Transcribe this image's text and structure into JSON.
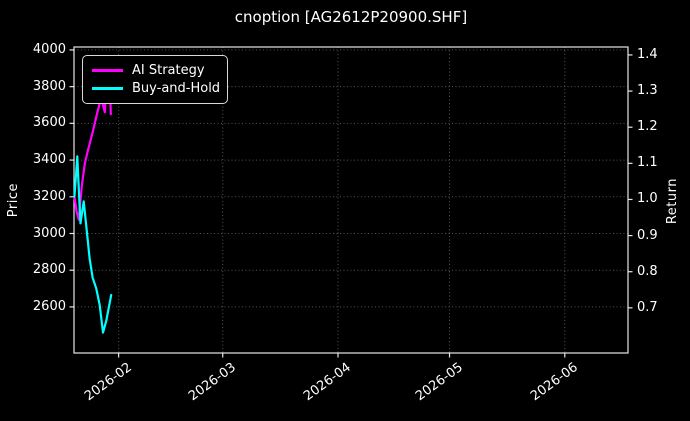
{
  "chart_data": {
    "type": "line",
    "title": "cnoption [AG2612P20900.SHF]",
    "grid": true,
    "legend_position": "upper left",
    "background": "#000000",
    "text_color": "#ffffff",
    "grid_color": "#545454",
    "spine_color": "#e6e6e6",
    "x_axis": {
      "epoch": "2026-01-20",
      "range_days": [
        0,
        149
      ],
      "tick_days": [
        12,
        40,
        71,
        101,
        132
      ],
      "tick_labels": [
        "2026-02",
        "2026-03",
        "2026-04",
        "2026-05",
        "2026-06"
      ]
    },
    "y_axis_left": {
      "label": "Price",
      "range": [
        2349,
        4016
      ],
      "tick_labels": [
        "4000",
        "3800",
        "3600",
        "3400",
        "3200",
        "3000",
        "2800",
        "2600"
      ]
    },
    "y_axis_right": {
      "label": "Return",
      "range": [
        0.575,
        1.422
      ],
      "tick_labels": [
        "1.4",
        "1.3",
        "1.2",
        "1.1",
        "1.0",
        "0.9",
        "0.8",
        "0.7"
      ]
    },
    "series": [
      {
        "name": "AI Strategy",
        "color": "#ff00ff",
        "axis": "left",
        "x_days": [
          0.1,
          0.7,
          1.3,
          2.1,
          2.9,
          3.7,
          4.5,
          5.3,
          6.1,
          6.9,
          7.4,
          8.3,
          8.9,
          9.2,
          9.5,
          9.9
        ],
        "price": [
          3200,
          3120,
          3075,
          3260,
          3380,
          3450,
          3510,
          3575,
          3645,
          3710,
          3730,
          3660,
          3935,
          3895,
          3925,
          3650
        ]
      },
      {
        "name": "Buy-and-Hold",
        "color": "#00ffff",
        "axis": "left",
        "x_days": [
          0.1,
          0.5,
          0.9,
          1.3,
          1.75,
          2.2,
          2.6,
          3.3,
          4.2,
          5.0,
          6.0,
          6.9,
          7.8,
          8.7,
          10.0
        ],
        "price": [
          3200,
          3310,
          3420,
          3240,
          3055,
          3120,
          3175,
          3040,
          2865,
          2760,
          2700,
          2610,
          2460,
          2525,
          2665
        ]
      }
    ]
  }
}
